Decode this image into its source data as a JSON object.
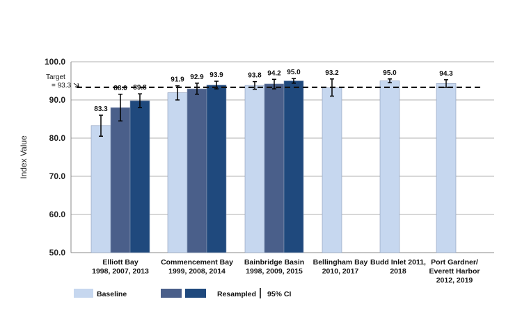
{
  "chart_data": {
    "type": "bar",
    "title": "",
    "xlabel": "",
    "ylabel": "Index Value",
    "ylim": [
      50,
      100
    ],
    "yticks": [
      "50.0",
      "60.0",
      "70.0",
      "80.0",
      "90.0",
      "100.0"
    ],
    "grid": true,
    "target": {
      "label_line1": "Target",
      "label_line2": "= 93.3",
      "value": 93.3
    },
    "colors": {
      "baseline": "#c6d7ef",
      "resampled1": "#4a5f8a",
      "resampled2": "#1f497d",
      "target": "#111111",
      "grid": "#b0b0b0"
    },
    "groups": [
      {
        "label": [
          "Elliott Bay",
          "1998, 2007, 2013"
        ],
        "bars": [
          {
            "series": "baseline",
            "value": 83.3,
            "label": "83.3",
            "ci": [
              80.5,
              86.0
            ]
          },
          {
            "series": "resampled1",
            "value": 88.0,
            "label": "88.0",
            "ci": [
              84.5,
              91.5
            ]
          },
          {
            "series": "resampled2",
            "value": 89.8,
            "label": "89.8",
            "ci": [
              88.0,
              91.6
            ]
          }
        ]
      },
      {
        "label": [
          "Commencement Bay",
          "1999, 2008, 2014"
        ],
        "bars": [
          {
            "series": "baseline",
            "value": 91.9,
            "label": "91.9",
            "ci": [
              90.0,
              93.7
            ]
          },
          {
            "series": "resampled1",
            "value": 92.9,
            "label": "92.9",
            "ci": [
              91.5,
              94.4
            ]
          },
          {
            "series": "resampled2",
            "value": 93.9,
            "label": "93.9",
            "ci": [
              92.9,
              94.9
            ]
          }
        ]
      },
      {
        "label": [
          "Bainbridge Basin",
          "1998, 2009, 2015"
        ],
        "bars": [
          {
            "series": "baseline",
            "value": 93.8,
            "label": "93.8",
            "ci": [
              92.8,
              94.8
            ]
          },
          {
            "series": "resampled1",
            "value": 94.2,
            "label": "94.2",
            "ci": [
              92.9,
              95.4
            ]
          },
          {
            "series": "resampled2",
            "value": 95.0,
            "label": "95.0",
            "ci": [
              94.4,
              95.6
            ]
          }
        ]
      },
      {
        "label": [
          "Bellingham Bay",
          "2010, 2017"
        ],
        "bars": [
          {
            "series": "baseline",
            "value": 93.2,
            "label": "93.2",
            "ci": [
              91.0,
              95.5
            ]
          }
        ]
      },
      {
        "label": [
          "Budd Inlet 2011,",
          "2018"
        ],
        "bars": [
          {
            "series": "baseline",
            "value": 95.0,
            "label": "95.0",
            "ci": [
              94.5,
              95.5
            ]
          }
        ]
      },
      {
        "label": [
          "Port Gardner/",
          "Everett Harbor",
          "2012, 2019"
        ],
        "bars": [
          {
            "series": "baseline",
            "value": 94.3,
            "label": "94.3",
            "ci": [
              93.3,
              95.3
            ]
          }
        ]
      }
    ],
    "legend": {
      "baseline": "Baseline",
      "resampled": "Resampled",
      "ci": "95% CI",
      "placement": "bottom"
    }
  }
}
